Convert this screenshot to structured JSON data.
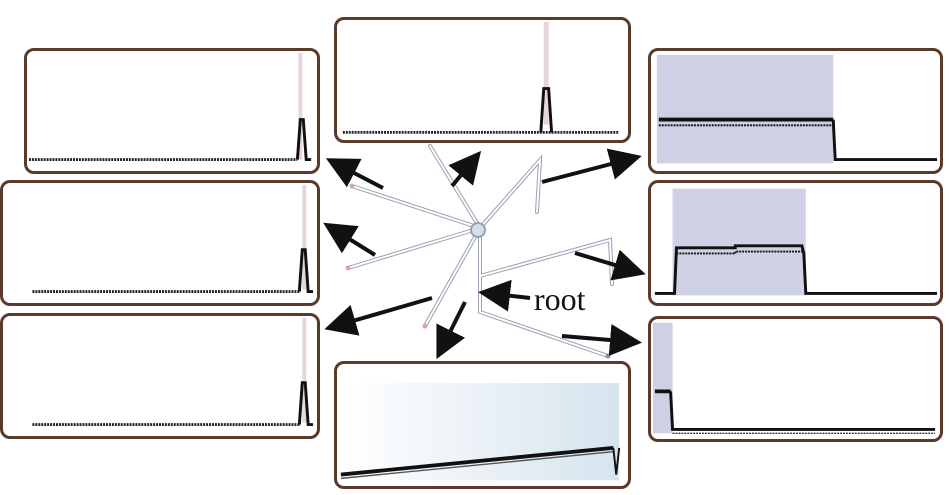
{
  "figure": {
    "root_label": "root",
    "colors": {
      "frame": "#5a3a2a",
      "trace": "#111111",
      "shade": "#c9cce0",
      "stem": "#c4bfd6",
      "arrow": "#111111"
    }
  }
}
